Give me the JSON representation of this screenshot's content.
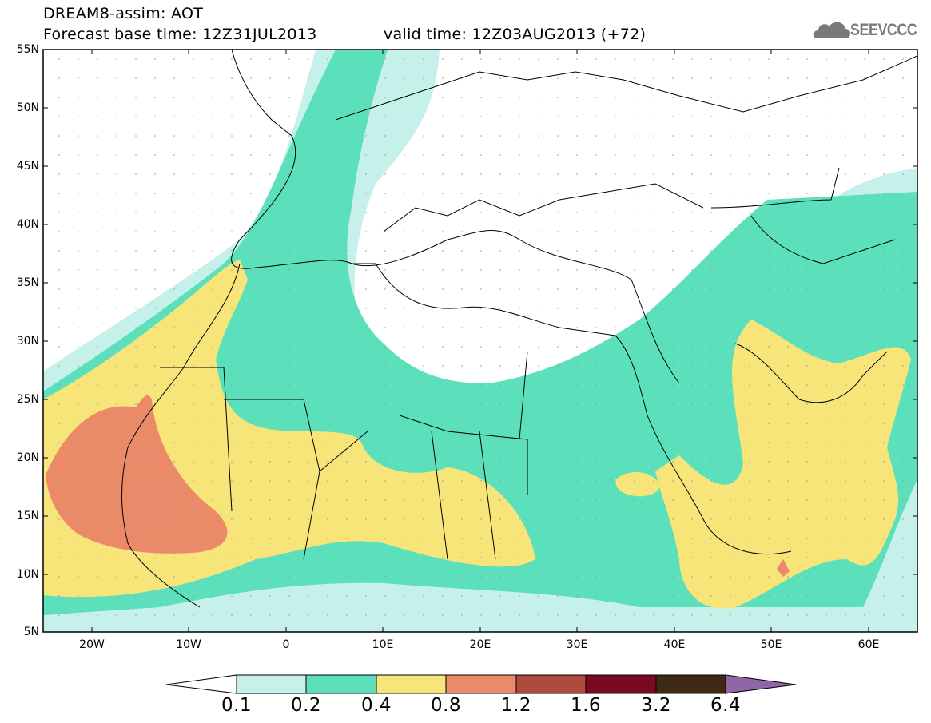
{
  "header": {
    "title": "DREAM8-assim: AOT",
    "base_time": "Forecast base time: 12Z31JUL2013",
    "valid_time": "valid time: 12Z03AUG2013 (+72)"
  },
  "logo": {
    "text": "SEEVCCC",
    "icon": "cloud-icon"
  },
  "map": {
    "lat_labels": [
      "55N",
      "50N",
      "45N",
      "40N",
      "35N",
      "30N",
      "25N",
      "20N",
      "15N",
      "10N",
      "5N"
    ],
    "lon_labels": [
      "20W",
      "10W",
      "0",
      "10E",
      "20E",
      "30E",
      "40E",
      "50E",
      "60E"
    ]
  },
  "colorbar": {
    "labels": [
      "0.1",
      "0.2",
      "0.4",
      "0.8",
      "1.2",
      "1.6",
      "3.2",
      "6.4"
    ],
    "colors": [
      "#ffffff",
      "#c6f1ea",
      "#5ce0bc",
      "#f7e57a",
      "#eb8a69",
      "#b04a3c",
      "#7a0a24",
      "#3e2a14",
      "#8f67a6"
    ]
  }
}
